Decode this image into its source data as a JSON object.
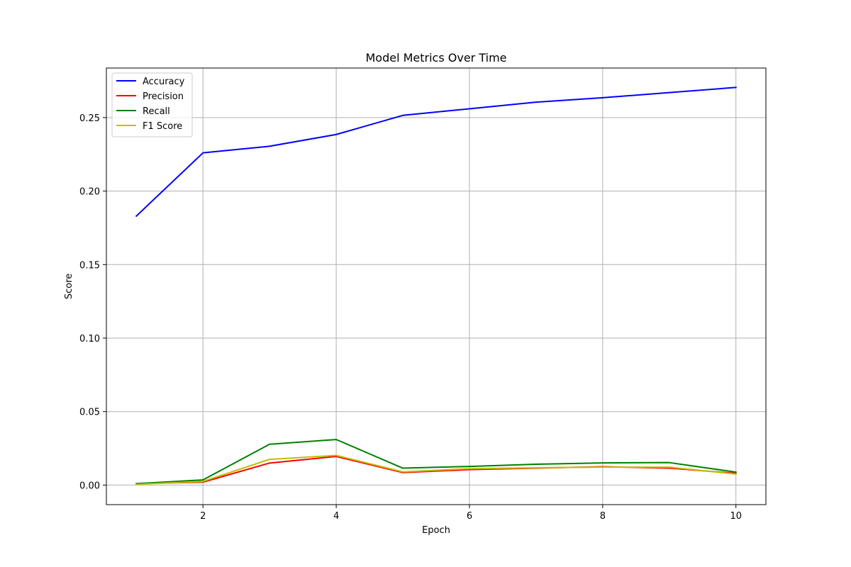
{
  "chart_data": {
    "type": "line",
    "title": "Model Metrics Over Time",
    "xlabel": "Epoch",
    "ylabel": "Score",
    "x": [
      1,
      2,
      3,
      4,
      5,
      6,
      7,
      8,
      9,
      10
    ],
    "xlim": [
      0.55,
      10.45
    ],
    "ylim": [
      -0.0133,
      0.2837
    ],
    "xticks": [
      2,
      4,
      6,
      8,
      10
    ],
    "xtick_labels": [
      "2",
      "4",
      "6",
      "8",
      "10"
    ],
    "yticks": [
      0.0,
      0.05,
      0.1,
      0.15,
      0.2,
      0.25
    ],
    "ytick_labels": [
      "0.00",
      "0.05",
      "0.10",
      "0.15",
      "0.20",
      "0.25"
    ],
    "grid": true,
    "legend_position": "top-left",
    "series": [
      {
        "name": "Accuracy",
        "color": "#0000ff",
        "values": [
          0.183,
          0.226,
          0.2305,
          0.2385,
          0.2515,
          0.256,
          0.2605,
          0.2635,
          0.267,
          0.2705
        ]
      },
      {
        "name": "Precision",
        "color": "#ff0000",
        "values": [
          0.001,
          0.002,
          0.015,
          0.0195,
          0.0085,
          0.0105,
          0.0115,
          0.0125,
          0.0115,
          0.008
        ]
      },
      {
        "name": "Recall",
        "color": "#008000",
        "values": [
          0.001,
          0.0035,
          0.0278,
          0.031,
          0.0115,
          0.0127,
          0.0142,
          0.0151,
          0.0153,
          0.0088
        ]
      },
      {
        "name": "F1 Score",
        "color": "#bfbf00",
        "values": [
          0.0005,
          0.0025,
          0.0175,
          0.0202,
          0.009,
          0.0112,
          0.0118,
          0.0122,
          0.0122,
          0.0075
        ]
      }
    ]
  }
}
